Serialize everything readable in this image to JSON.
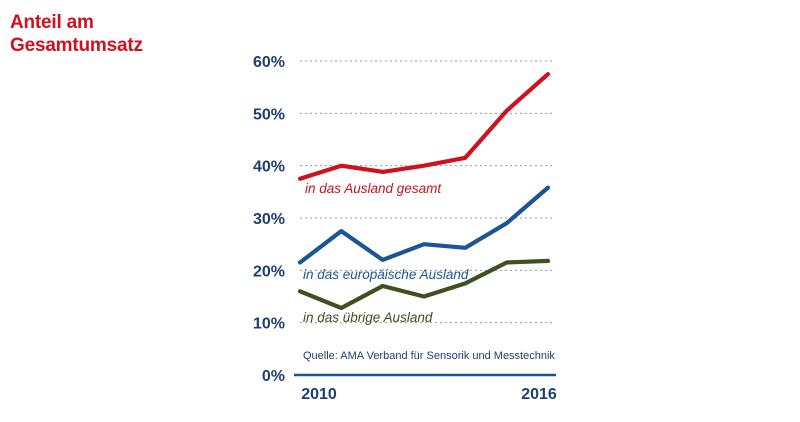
{
  "chart_data": {
    "type": "line",
    "title_lines": [
      "Anteil am",
      "Gesamtumsatz"
    ],
    "source": "Quelle: AMA Verband für Sensorik und Messtechnik",
    "x": [
      2010,
      2011,
      2012,
      2013,
      2014,
      2015,
      2016
    ],
    "x_tick_labels": [
      "2010",
      "2016"
    ],
    "x_tick_values": [
      2010,
      2016
    ],
    "y_tick_labels": [
      "0%",
      "10%",
      "20%",
      "30%",
      "40%",
      "50%",
      "60%"
    ],
    "y_tick_values": [
      0,
      10,
      20,
      30,
      40,
      50,
      60
    ],
    "ylim": [
      0,
      60
    ],
    "xlim": [
      2010,
      2016
    ],
    "grid": true,
    "series": [
      {
        "name": "in das Ausland gesamt",
        "color": "#d0101e",
        "values": [
          37.5,
          40.0,
          38.8,
          40.0,
          41.5,
          50.5,
          57.5
        ]
      },
      {
        "name": "in das europäische Ausland",
        "color": "#1b5593",
        "values": [
          21.5,
          27.5,
          22.0,
          25.0,
          24.3,
          29.0,
          35.8
        ]
      },
      {
        "name": "in das übrige Ausland",
        "color": "#3e5020",
        "values": [
          16.0,
          12.8,
          17.0,
          15.0,
          17.5,
          21.5,
          21.8
        ]
      }
    ]
  }
}
